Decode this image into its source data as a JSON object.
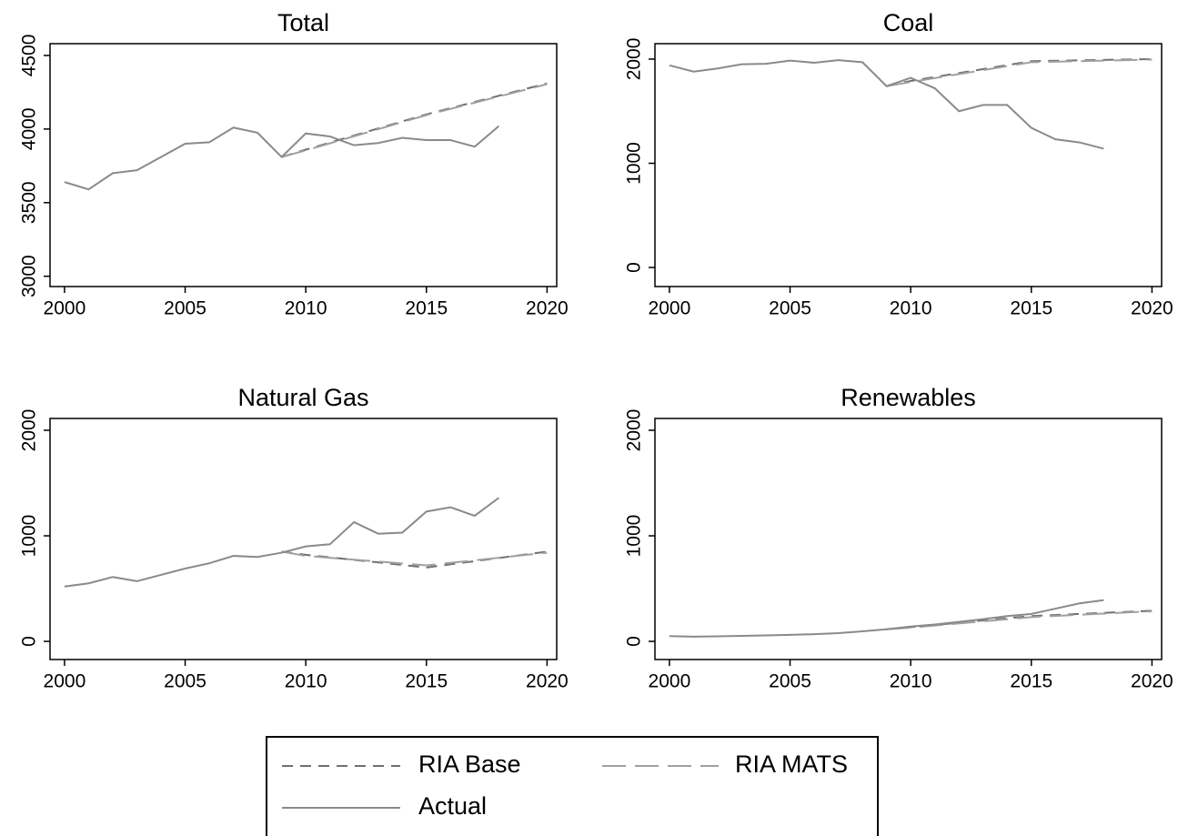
{
  "chart_data": [
    {
      "type": "line",
      "title": "Total",
      "xlim": [
        1999.4,
        2020.4
      ],
      "xticks": [
        2000,
        2005,
        2010,
        2015,
        2020
      ],
      "ylim": [
        2930,
        4580
      ],
      "yticks": [
        3000,
        3500,
        4000,
        4500
      ],
      "series": [
        {
          "name": "RIA Base",
          "color": "#707070",
          "dash": "short",
          "x": [
            2009,
            2010,
            2015,
            2020
          ],
          "values": [
            3810,
            3860,
            4100,
            4310
          ]
        },
        {
          "name": "RIA MATS",
          "color": "#a0a0a0",
          "dash": "long",
          "x": [
            2009,
            2010,
            2015,
            2020
          ],
          "values": [
            3810,
            3855,
            4095,
            4305
          ]
        },
        {
          "name": "Actual",
          "color": "#8a8a8a",
          "dash": "solid",
          "x": [
            2000,
            2001,
            2002,
            2003,
            2004,
            2005,
            2006,
            2007,
            2008,
            2009,
            2010,
            2011,
            2012,
            2013,
            2014,
            2015,
            2016,
            2017,
            2018
          ],
          "values": [
            3640,
            3590,
            3700,
            3720,
            3810,
            3900,
            3910,
            4010,
            3975,
            3810,
            3970,
            3950,
            3890,
            3905,
            3940,
            3925,
            3925,
            3880,
            4020
          ]
        }
      ]
    },
    {
      "type": "line",
      "title": "Coal",
      "xlim": [
        1999.4,
        2020.4
      ],
      "xticks": [
        2000,
        2005,
        2010,
        2015,
        2020
      ],
      "ylim": [
        -183,
        2148
      ],
      "yticks": [
        0,
        1000,
        2000
      ],
      "series": [
        {
          "name": "RIA Base",
          "color": "#707070",
          "dash": "short",
          "x": [
            2009,
            2010,
            2015,
            2020
          ],
          "values": [
            1740,
            1790,
            1980,
            2000
          ]
        },
        {
          "name": "RIA MATS",
          "color": "#a0a0a0",
          "dash": "long",
          "x": [
            2009,
            2010,
            2015,
            2020
          ],
          "values": [
            1740,
            1780,
            1970,
            1995
          ]
        },
        {
          "name": "Actual",
          "color": "#8a8a8a",
          "dash": "solid",
          "x": [
            2000,
            2001,
            2002,
            2003,
            2004,
            2005,
            2006,
            2007,
            2008,
            2009,
            2010,
            2011,
            2012,
            2013,
            2014,
            2015,
            2016,
            2017,
            2018
          ],
          "values": [
            1940,
            1880,
            1910,
            1950,
            1955,
            1985,
            1965,
            1990,
            1970,
            1740,
            1820,
            1720,
            1500,
            1560,
            1560,
            1340,
            1230,
            1200,
            1140
          ]
        }
      ]
    },
    {
      "type": "line",
      "title": "Natural Gas",
      "xlim": [
        1999.4,
        2020.4
      ],
      "xticks": [
        2000,
        2005,
        2010,
        2015,
        2020
      ],
      "ylim": [
        -172,
        2112
      ],
      "yticks": [
        0,
        1000,
        2000
      ],
      "series": [
        {
          "name": "RIA Base",
          "color": "#707070",
          "dash": "short",
          "x": [
            2009,
            2010,
            2015,
            2020
          ],
          "values": [
            850,
            820,
            700,
            850
          ]
        },
        {
          "name": "RIA MATS",
          "color": "#a0a0a0",
          "dash": "long",
          "x": [
            2009,
            2010,
            2015,
            2020
          ],
          "values": [
            850,
            810,
            720,
            840
          ]
        },
        {
          "name": "Actual",
          "color": "#8a8a8a",
          "dash": "solid",
          "x": [
            2000,
            2001,
            2002,
            2003,
            2004,
            2005,
            2006,
            2007,
            2008,
            2009,
            2010,
            2011,
            2012,
            2013,
            2014,
            2015,
            2016,
            2017,
            2018
          ],
          "values": [
            520,
            550,
            610,
            570,
            630,
            690,
            740,
            810,
            800,
            840,
            900,
            920,
            1130,
            1020,
            1030,
            1230,
            1270,
            1190,
            1360
          ]
        }
      ]
    },
    {
      "type": "line",
      "title": "Renewables",
      "xlim": [
        1999.4,
        2020.4
      ],
      "xticks": [
        2000,
        2005,
        2010,
        2015,
        2020
      ],
      "ylim": [
        -172,
        2112
      ],
      "yticks": [
        0,
        1000,
        2000
      ],
      "series": [
        {
          "name": "RIA Base",
          "color": "#707070",
          "dash": "short",
          "x": [
            2009,
            2010,
            2015,
            2020
          ],
          "values": [
            115,
            135,
            240,
            290
          ]
        },
        {
          "name": "RIA MATS",
          "color": "#a0a0a0",
          "dash": "long",
          "x": [
            2009,
            2010,
            2015,
            2020
          ],
          "values": [
            115,
            130,
            230,
            285
          ]
        },
        {
          "name": "Actual",
          "color": "#8a8a8a",
          "dash": "solid",
          "x": [
            2000,
            2001,
            2002,
            2003,
            2004,
            2005,
            2006,
            2007,
            2008,
            2009,
            2010,
            2011,
            2012,
            2013,
            2014,
            2015,
            2016,
            2017,
            2018
          ],
          "values": [
            50,
            45,
            48,
            52,
            56,
            62,
            68,
            78,
            95,
            115,
            140,
            160,
            185,
            210,
            240,
            260,
            310,
            360,
            390
          ]
        }
      ]
    }
  ]
}
